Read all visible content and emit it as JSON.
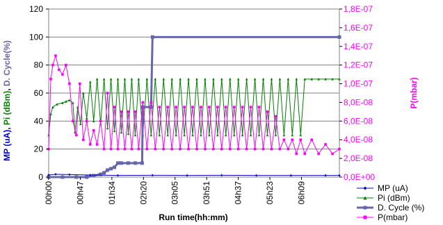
{
  "chart_data": {
    "type": "line",
    "xlabel": "Run time(hh:mm)",
    "x_tick_labels": [
      "00h00",
      "00h47",
      "01h34",
      "02h20",
      "03h05",
      "03h51",
      "04h37",
      "05h23",
      "06h09"
    ],
    "x_range_minutes": [
      0,
      420
    ],
    "y_left": {
      "label_parts": [
        {
          "text": "MP (uA)",
          "color": "#0000cc"
        },
        {
          "text": ", ",
          "color": "#000000"
        },
        {
          "text": "Pi (dBm)",
          "color": "#008000"
        },
        {
          "text": ", ",
          "color": "#000000"
        },
        {
          "text": "D. Cycle(%)",
          "color": "#6666aa"
        }
      ],
      "range": [
        0,
        120
      ],
      "ticks": [
        "0",
        "20",
        "40",
        "60",
        "80",
        "100",
        "120"
      ]
    },
    "y_right": {
      "label": "P(mbar)",
      "color": "#ff00ff",
      "range": [
        0,
        1.8e-07
      ],
      "ticks": [
        "0,0E+00",
        "2,0E-08",
        "4,0E-08",
        "6,0E-08",
        "8,0E-08",
        "1,0E-07",
        "1,2E-07",
        "1,4E-07",
        "1,6E-07",
        "1,8E-07"
      ]
    },
    "grid": true,
    "legend_position": "bottom-right",
    "series": [
      {
        "name": "MP (uA)",
        "color": "#0000cc",
        "marker": "diamond",
        "axis": "left",
        "x": [
          0,
          10,
          30,
          60,
          100,
          150,
          200,
          250,
          300,
          350,
          400,
          420
        ],
        "y": [
          1.5,
          2,
          1.8,
          1.5,
          1.2,
          1.3,
          1.2,
          1.3,
          1.2,
          1.2,
          1.2,
          1.2
        ]
      },
      {
        "name": "Pi (dBm)",
        "color": "#008000",
        "marker": "triangle",
        "axis": "left",
        "x": [
          0,
          3,
          6,
          12,
          20,
          25,
          30,
          35,
          38,
          42,
          46,
          50,
          55,
          60,
          65,
          70,
          75,
          80,
          85,
          90,
          95,
          100,
          105,
          110,
          115,
          120,
          125,
          130,
          136,
          142,
          148,
          154,
          160,
          166,
          172,
          178,
          184,
          190,
          196,
          202,
          208,
          214,
          220,
          226,
          232,
          238,
          244,
          250,
          256,
          262,
          268,
          274,
          280,
          286,
          292,
          298,
          304,
          310,
          316,
          322,
          328,
          334,
          340,
          346,
          352,
          358,
          364,
          370,
          380,
          390,
          400,
          410,
          420
        ],
        "y": [
          30,
          45,
          50,
          52,
          53,
          54,
          55,
          53,
          32,
          50,
          38,
          60,
          42,
          68,
          40,
          70,
          38,
          70,
          35,
          70,
          33,
          70,
          32,
          70,
          31,
          70,
          30,
          70,
          30,
          70,
          30,
          70,
          30,
          70,
          30,
          70,
          30,
          70,
          30,
          70,
          30,
          70,
          30,
          70,
          30,
          70,
          30,
          70,
          30,
          70,
          30,
          70,
          30,
          70,
          30,
          70,
          30,
          70,
          30,
          70,
          30,
          70,
          30,
          70,
          30,
          70,
          30,
          70,
          70,
          70,
          70,
          70,
          70
        ]
      },
      {
        "name": "D. Cycle (%)",
        "color": "#6666aa",
        "marker": "square",
        "axis": "left",
        "x": [
          0,
          20,
          40,
          55,
          65,
          75,
          80,
          85,
          90,
          95,
          100,
          105,
          115,
          125,
          135,
          136,
          148,
          150,
          420
        ],
        "y": [
          0,
          0,
          0,
          0,
          1,
          2,
          3,
          5,
          6,
          7,
          10,
          10,
          10,
          10,
          10,
          50,
          50,
          100,
          100
        ]
      },
      {
        "name": "P(mbar)",
        "color": "#ff00ff",
        "marker": "square",
        "axis": "right",
        "x": [
          0,
          3,
          6,
          10,
          15,
          20,
          25,
          30,
          35,
          40,
          45,
          50,
          55,
          60,
          65,
          70,
          75,
          80,
          85,
          90,
          95,
          100,
          105,
          110,
          115,
          120,
          125,
          130,
          136,
          142,
          148,
          154,
          160,
          166,
          172,
          178,
          184,
          190,
          196,
          202,
          208,
          214,
          220,
          226,
          232,
          238,
          244,
          250,
          256,
          262,
          268,
          274,
          280,
          286,
          292,
          298,
          304,
          310,
          316,
          322,
          328,
          334,
          340,
          346,
          352,
          358,
          364,
          370,
          380,
          390,
          400,
          410,
          420
        ],
        "y": [
          3e-08,
          1.05e-07,
          1.2e-07,
          1.3e-07,
          1.15e-07,
          1.1e-07,
          1.2e-07,
          1e-07,
          6e-08,
          4.5e-08,
          1e-07,
          4e-08,
          6e-08,
          3.5e-08,
          5e-08,
          3.5e-08,
          6e-08,
          3e-08,
          9e-08,
          3e-08,
          7.5e-08,
          3e-08,
          7e-08,
          3e-08,
          7e-08,
          3e-08,
          7e-08,
          3e-08,
          8e-08,
          3e-08,
          8e-08,
          3e-08,
          7.5e-08,
          3e-08,
          7.5e-08,
          3e-08,
          7.5e-08,
          3e-08,
          7.5e-08,
          3e-08,
          7.5e-08,
          3e-08,
          7.5e-08,
          3e-08,
          7.5e-08,
          3e-08,
          7.5e-08,
          3e-08,
          7.5e-08,
          3e-08,
          7.5e-08,
          3e-08,
          7.5e-08,
          3e-08,
          7.5e-08,
          3e-08,
          7.5e-08,
          3e-08,
          7e-08,
          3e-08,
          6.5e-08,
          3e-08,
          4e-08,
          3e-08,
          4e-08,
          2.5e-08,
          4e-08,
          2.5e-08,
          4e-08,
          2.5e-08,
          3.5e-08,
          2.5e-08,
          3e-08
        ]
      }
    ]
  }
}
